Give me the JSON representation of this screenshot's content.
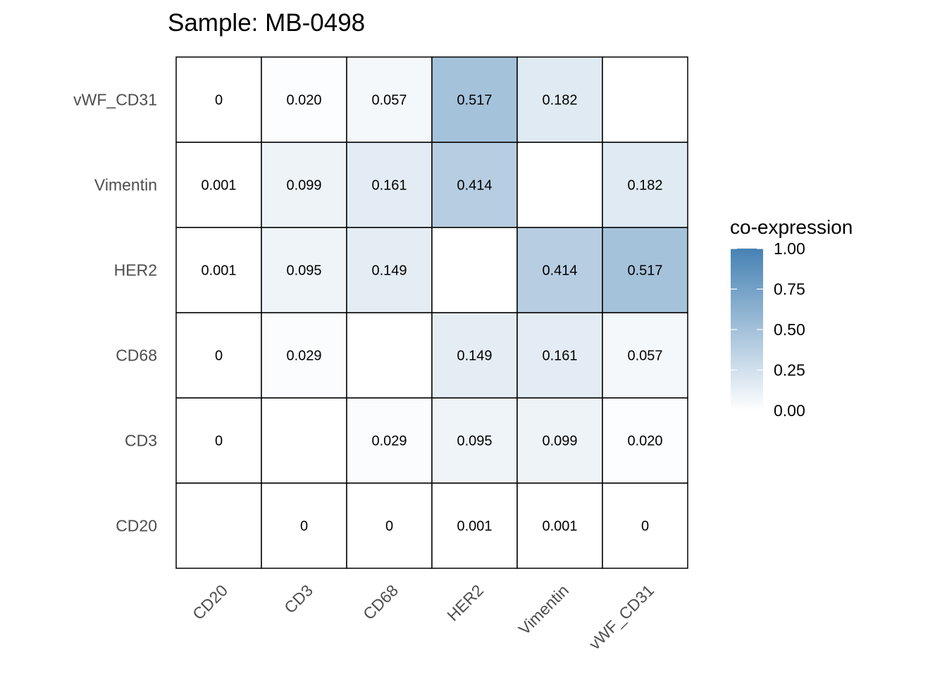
{
  "chart_data": {
    "type": "heatmap",
    "title": "Sample: MB-0498",
    "xlabel": "",
    "ylabel": "",
    "x_categories": [
      "CD20",
      "CD3",
      "CD68",
      "HER2",
      "Vimentin",
      "vWF_CD31"
    ],
    "y_categories": [
      "CD20",
      "CD3",
      "CD68",
      "HER2",
      "Vimentin",
      "vWF_CD31"
    ],
    "values": [
      [
        null,
        0,
        0,
        0.001,
        0.001,
        0
      ],
      [
        0,
        null,
        0.029,
        0.095,
        0.099,
        0.02
      ],
      [
        0,
        0.029,
        null,
        0.149,
        0.161,
        0.057
      ],
      [
        0.001,
        0.095,
        0.149,
        null,
        0.414,
        0.517
      ],
      [
        0.001,
        0.099,
        0.161,
        0.414,
        null,
        0.182
      ],
      [
        0,
        0.02,
        0.057,
        0.517,
        0.182,
        null
      ]
    ],
    "labels": [
      [
        "",
        "0",
        "0",
        "0.001",
        "0.001",
        "0"
      ],
      [
        "0",
        "",
        "0.029",
        "0.095",
        "0.099",
        "0.020"
      ],
      [
        "0",
        "0.029",
        "",
        "0.149",
        "0.161",
        "0.057"
      ],
      [
        "0.001",
        "0.095",
        "0.149",
        "",
        "0.414",
        "0.517"
      ],
      [
        "0.001",
        "0.099",
        "0.161",
        "0.414",
        "",
        "0.182"
      ],
      [
        "0",
        "0.020",
        "0.057",
        "0.517",
        "0.182",
        ""
      ]
    ],
    "legend": {
      "title": "co-expression",
      "range": [
        0,
        1
      ],
      "ticks": [
        1.0,
        0.75,
        0.5,
        0.25,
        0.0
      ],
      "tick_labels": [
        "1.00",
        "0.75",
        "0.50",
        "0.25",
        "0.00"
      ],
      "placement": "right",
      "low_color": "#FFFFFF",
      "high_color": "#4682B4"
    },
    "grid": false
  }
}
